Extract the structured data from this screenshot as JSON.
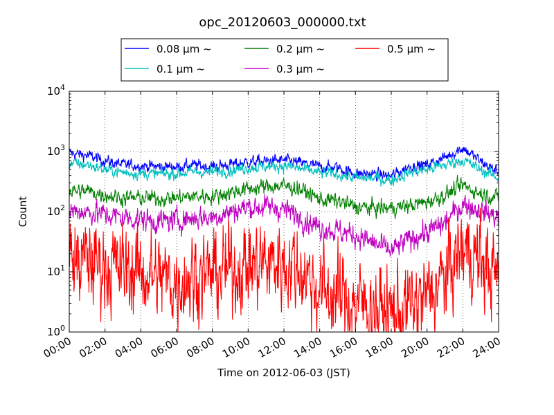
{
  "chart_data": {
    "type": "line",
    "title": "opc_20120603_000000.txt",
    "xlabel": "Time on 2012-06-03 (JST)",
    "ylabel": "Count",
    "y_scale": "log",
    "ylim": [
      1,
      10000
    ],
    "xlim": [
      "00:00",
      "24:00"
    ],
    "x_tick_labels": [
      "00:00",
      "02:00",
      "04:00",
      "06:00",
      "08:00",
      "10:00",
      "12:00",
      "14:00",
      "16:00",
      "18:00",
      "20:00",
      "22:00",
      "24:00"
    ],
    "y_tick_labels": [
      {
        "base": "10",
        "exp": "0"
      },
      {
        "base": "10",
        "exp": "1"
      },
      {
        "base": "10",
        "exp": "2"
      },
      {
        "base": "10",
        "exp": "3"
      },
      {
        "base": "10",
        "exp": "4"
      }
    ],
    "grid": true,
    "legend_position": "top-center, outside plot",
    "x_hours": [
      0,
      1,
      2,
      3,
      4,
      5,
      6,
      7,
      8,
      9,
      10,
      11,
      12,
      13,
      14,
      15,
      16,
      17,
      18,
      19,
      20,
      21,
      22,
      23,
      24
    ],
    "series": [
      {
        "name": "0.08 μm ~",
        "color": "#0000ff",
        "noise": 0.06,
        "values": [
          950,
          860,
          700,
          600,
          580,
          560,
          560,
          590,
          560,
          600,
          670,
          690,
          710,
          640,
          560,
          540,
          430,
          420,
          390,
          560,
          600,
          800,
          1150,
          680,
          450
        ]
      },
      {
        "name": "0.1 μm ~",
        "color": "#00bfbf",
        "noise": 0.06,
        "values": [
          640,
          600,
          500,
          450,
          430,
          420,
          430,
          460,
          450,
          490,
          540,
          560,
          580,
          510,
          440,
          420,
          360,
          360,
          330,
          450,
          500,
          600,
          720,
          500,
          360
        ]
      },
      {
        "name": "0.2 μm ~",
        "color": "#008000",
        "noise": 0.08,
        "values": [
          220,
          220,
          190,
          170,
          170,
          165,
          170,
          180,
          180,
          210,
          240,
          260,
          270,
          230,
          160,
          150,
          120,
          115,
          115,
          125,
          145,
          190,
          275,
          200,
          170
        ]
      },
      {
        "name": "0.3 μm ~",
        "color": "#bf00bf",
        "noise": 0.12,
        "values": [
          105,
          100,
          90,
          80,
          75,
          68,
          72,
          80,
          80,
          100,
          120,
          120,
          110,
          80,
          55,
          48,
          40,
          30,
          22,
          35,
          45,
          65,
          135,
          105,
          80
        ]
      },
      {
        "name": "0.5 μm ~",
        "color": "#ff0000",
        "noise": 0.45,
        "values": [
          15,
          15,
          13,
          11,
          10,
          8,
          7,
          9,
          9,
          11,
          13,
          14,
          14,
          11,
          5,
          4,
          3,
          2.5,
          2,
          2.5,
          4,
          8,
          25,
          15,
          8
        ]
      }
    ]
  }
}
